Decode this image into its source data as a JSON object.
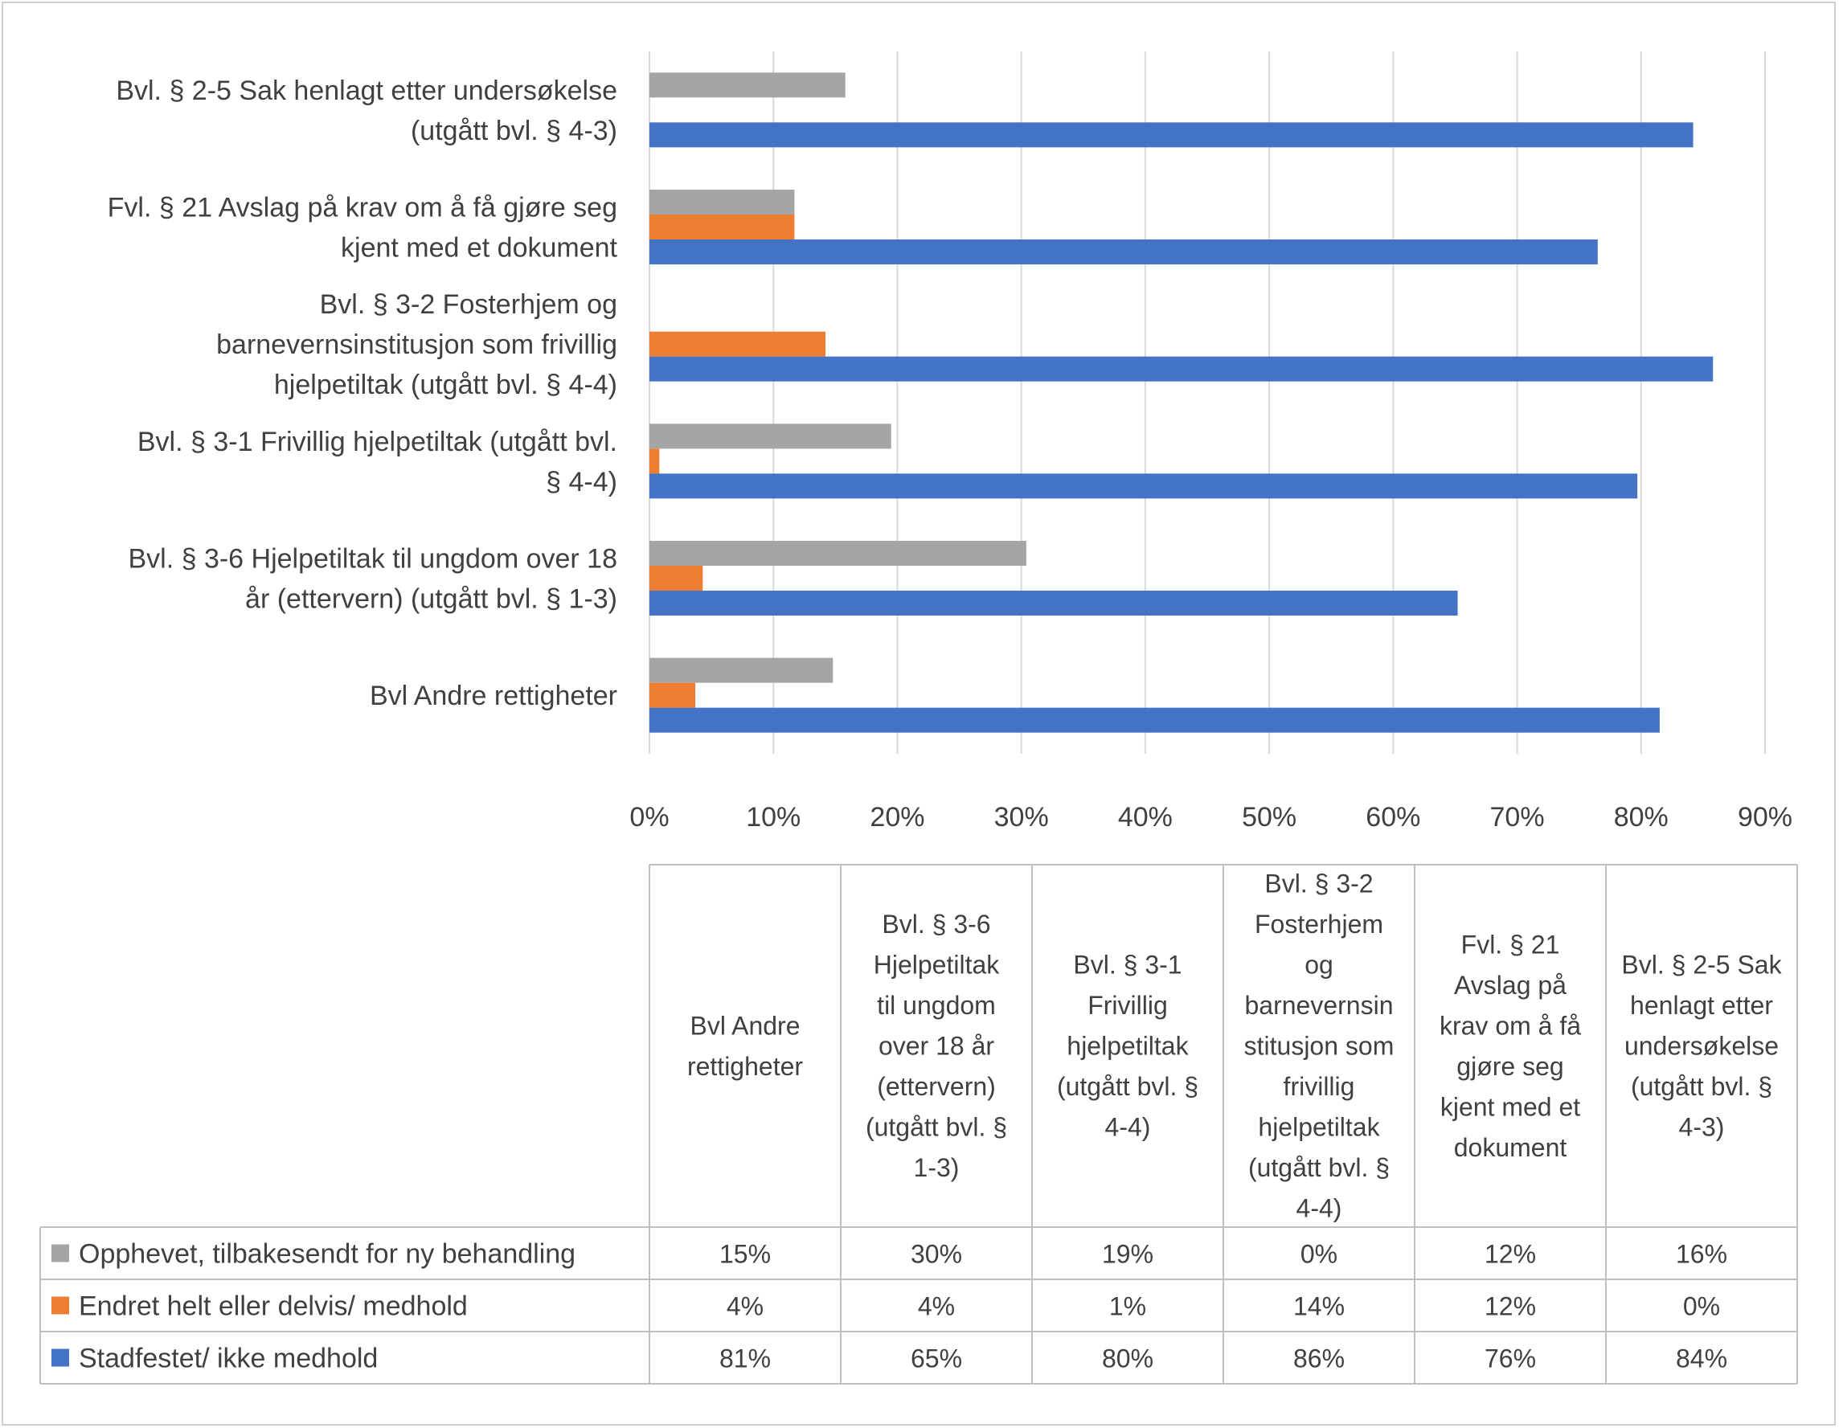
{
  "chart_data": {
    "type": "bar",
    "orientation": "horizontal",
    "xlim": [
      0,
      90
    ],
    "ticks": [
      0,
      10,
      20,
      30,
      40,
      50,
      60,
      70,
      80,
      90
    ],
    "tick_labels": [
      "0%",
      "10%",
      "20%",
      "30%",
      "40%",
      "50%",
      "60%",
      "70%",
      "80%",
      "90%"
    ],
    "grid": true,
    "legend": "data-table-below",
    "categories": [
      {
        "label_lines": [
          "Bvl Andre rettigheter"
        ],
        "table_lines": [
          "Bvl Andre",
          "rettigheter"
        ]
      },
      {
        "label_lines": [
          "Bvl. § 3-6 Hjelpetiltak til ungdom over 18",
          "år (ettervern) (utgått bvl. § 1-3)"
        ],
        "table_lines": [
          "Bvl. § 3-6",
          "Hjelpetiltak",
          "til ungdom",
          "over 18 år",
          "(ettervern)",
          "(utgått bvl. §",
          "1-3)"
        ]
      },
      {
        "label_lines": [
          "Bvl. § 3-1 Frivillig hjelpetiltak (utgått bvl.",
          "§ 4-4)"
        ],
        "table_lines": [
          "Bvl. § 3-1",
          "Frivillig",
          "hjelpetiltak",
          "(utgått bvl. §",
          "4-4)"
        ]
      },
      {
        "label_lines": [
          "Bvl. § 3-2 Fosterhjem og",
          "barnevernsinstitusjon som frivillig",
          "hjelpetiltak (utgått bvl. § 4-4)"
        ],
        "table_lines": [
          "Bvl. § 3-2",
          "Fosterhjem",
          "og",
          "barnevernsin",
          "stitusjon som",
          "frivillig",
          "hjelpetiltak",
          "(utgått bvl. §",
          "4-4)"
        ]
      },
      {
        "label_lines": [
          "Fvl. § 21 Avslag på krav om å få gjøre seg",
          "kjent med et dokument"
        ],
        "table_lines": [
          "Fvl. § 21",
          "Avslag på",
          "krav om å få",
          "gjøre seg",
          "kjent med et",
          "dokument"
        ]
      },
      {
        "label_lines": [
          "Bvl. § 2-5 Sak henlagt etter undersøkelse",
          "(utgått bvl. § 4-3)"
        ],
        "table_lines": [
          "Bvl. § 2-5 Sak",
          "henlagt etter",
          "undersøkelse",
          "(utgått bvl. §",
          "4-3)"
        ]
      }
    ],
    "series": [
      {
        "name": "Opphevet, tilbakesendt for ny behandling",
        "color": "#a5a5a5",
        "values": [
          14.8,
          30.4,
          19.5,
          0,
          11.7,
          15.8
        ],
        "table_values": [
          "15%",
          "30%",
          "19%",
          "0%",
          "12%",
          "16%"
        ]
      },
      {
        "name": "Endret helt eller delvis/ medhold",
        "color": "#ed7d31",
        "values": [
          3.7,
          4.3,
          0.8,
          14.2,
          11.7,
          0
        ],
        "table_values": [
          "4%",
          "4%",
          "1%",
          "14%",
          "12%",
          "0%"
        ]
      },
      {
        "name": "Stadfestet/ ikke medhold",
        "color": "#4472c4",
        "values": [
          81.5,
          65.2,
          79.7,
          85.8,
          76.5,
          84.2
        ],
        "table_values": [
          "81%",
          "65%",
          "80%",
          "86%",
          "76%",
          "84%"
        ]
      }
    ]
  },
  "colors": {
    "grid": "#d9d9d9",
    "text": "#404040",
    "table_border": "#bfbfbf"
  }
}
